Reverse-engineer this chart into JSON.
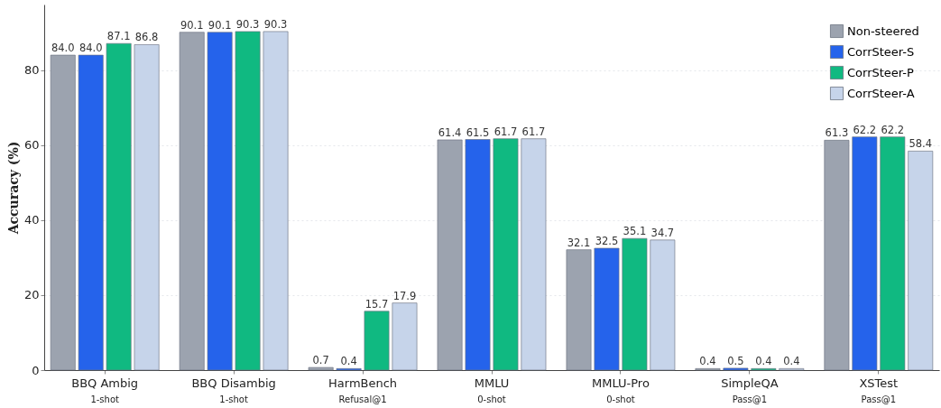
{
  "chart_data": {
    "type": "bar",
    "ylabel": "Accuracy (%)",
    "categories": [
      "BBQ Ambig\n1-shot",
      "BBQ Disambig\n1-shot",
      "HarmBench\nRefusal@1",
      "MMLU\n0-shot",
      "MMLU-Pro\n0-shot",
      "SimpleQA\nPass@1",
      "XSTest\nPass@1"
    ],
    "series": [
      {
        "name": "Non-steered",
        "color": "#9ca3af",
        "values": [
          84.0,
          90.1,
          0.7,
          61.4,
          32.1,
          0.4,
          61.3
        ],
        "value_labels": [
          "84.0",
          "90.1",
          "0.7",
          "61.4",
          "32.1",
          "0.4",
          "61.3"
        ]
      },
      {
        "name": "CorrSteer-S",
        "color": "#2563eb",
        "values": [
          84.0,
          90.1,
          0.4,
          61.5,
          32.5,
          0.5,
          62.2
        ],
        "value_labels": [
          "84.0",
          "90.1",
          "0.4",
          "61.5",
          "32.5",
          "0.5",
          "62.2"
        ]
      },
      {
        "name": "CorrSteer-P",
        "color": "#10b981",
        "values": [
          87.1,
          90.3,
          15.7,
          61.7,
          35.1,
          0.4,
          62.2
        ],
        "value_labels": [
          "87.1",
          "90.3",
          "15.7",
          "61.7",
          "35.1",
          "0.4",
          "62.2"
        ]
      },
      {
        "name": "CorrSteer-A",
        "color": "#c6d4ea",
        "values": [
          86.8,
          90.3,
          17.9,
          61.7,
          34.7,
          0.4,
          58.4
        ],
        "value_labels": [
          "86.8",
          "90.3",
          "17.9",
          "61.7",
          "34.7",
          "0.4",
          "58.4"
        ]
      }
    ],
    "ylim": [
      0,
      97.5
    ],
    "yticks": [
      0,
      20,
      40,
      60,
      80
    ],
    "grid": "y",
    "legend": "top right"
  }
}
